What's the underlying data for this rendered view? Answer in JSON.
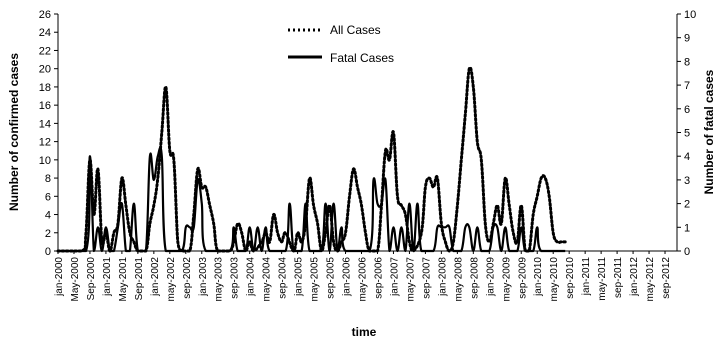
{
  "chart_data": {
    "type": "line",
    "xlabel": "time",
    "ylabel_left": "Number of confirmed cases",
    "ylabel_right": "Number of fatal cases",
    "ylim_left": [
      0,
      26
    ],
    "ylim_right": [
      0,
      10
    ],
    "yticks_left": [
      "0",
      "2",
      "4",
      "6",
      "8",
      "10",
      "12",
      "14",
      "16",
      "18",
      "20",
      "22",
      "24",
      "26"
    ],
    "yticks_right": [
      "0",
      "1",
      "2",
      "3",
      "4",
      "5",
      "6",
      "7",
      "8",
      "9",
      "10"
    ],
    "x_tick_labels": [
      "jan-2000",
      "May-2000",
      "Sep-2000",
      "jan-2001",
      "May-2001",
      "Sep-2001",
      "jan-2002",
      "may-2002",
      "sep-2002",
      "jan-2003",
      "may-2003",
      "sep-2003",
      "jan-2004",
      "may-2004",
      "sep-2004",
      "jan-2005",
      "may-2005",
      "sep-2005",
      "jan-2006",
      "may-2006",
      "sep-2006",
      "jan-2007",
      "may-2007",
      "sep-2007",
      "jan-2008",
      "may-2008",
      "sep-2008",
      "jan-2009",
      "may-2009",
      "sep-2009",
      "jan-2010",
      "may-2010",
      "sep-2010",
      "jan-2011",
      "may-2011",
      "sep-2011",
      "jan-2012",
      "may-2012",
      "sep-2012"
    ],
    "legend_position": "top-center",
    "grid": false,
    "series": [
      {
        "name": "All Cases",
        "axis": "left",
        "style": "dotted",
        "color": "#000000",
        "points": [
          [
            0,
            0
          ],
          [
            6,
            0
          ],
          [
            7,
            2
          ],
          [
            8,
            10
          ],
          [
            9,
            4
          ],
          [
            10,
            9
          ],
          [
            11,
            1
          ],
          [
            12,
            2
          ],
          [
            13,
            0
          ],
          [
            14,
            2
          ],
          [
            15,
            3
          ],
          [
            16,
            8
          ],
          [
            17,
            5
          ],
          [
            18,
            2
          ],
          [
            19,
            1
          ],
          [
            20,
            0
          ],
          [
            22,
            0
          ],
          [
            23,
            3
          ],
          [
            24,
            5
          ],
          [
            25,
            8
          ],
          [
            26,
            13
          ],
          [
            27,
            18
          ],
          [
            28,
            11
          ],
          [
            29,
            10
          ],
          [
            30,
            1
          ],
          [
            31,
            0
          ],
          [
            33,
            0
          ],
          [
            34,
            4
          ],
          [
            35,
            9
          ],
          [
            36,
            7
          ],
          [
            37,
            7
          ],
          [
            38,
            5
          ],
          [
            39,
            3
          ],
          [
            40,
            0
          ],
          [
            43,
            0
          ],
          [
            44,
            1
          ],
          [
            45,
            3
          ],
          [
            46,
            2
          ],
          [
            47,
            0
          ],
          [
            48,
            1
          ],
          [
            49,
            0
          ],
          [
            51,
            1
          ],
          [
            52,
            2
          ],
          [
            53,
            1
          ],
          [
            54,
            4
          ],
          [
            55,
            2
          ],
          [
            56,
            1
          ],
          [
            57,
            2
          ],
          [
            59,
            0
          ],
          [
            60,
            2
          ],
          [
            61,
            1
          ],
          [
            62,
            3
          ],
          [
            63,
            8
          ],
          [
            64,
            5
          ],
          [
            65,
            3
          ],
          [
            66,
            0
          ],
          [
            67,
            2
          ],
          [
            68,
            5
          ],
          [
            69,
            1
          ],
          [
            70,
            0
          ],
          [
            71,
            1
          ],
          [
            72,
            2
          ],
          [
            73,
            6
          ],
          [
            74,
            9
          ],
          [
            75,
            7
          ],
          [
            76,
            5
          ],
          [
            77,
            2
          ],
          [
            78,
            0
          ],
          [
            80,
            0
          ],
          [
            81,
            5
          ],
          [
            82,
            11
          ],
          [
            83,
            10
          ],
          [
            84,
            13
          ],
          [
            85,
            6
          ],
          [
            86,
            5
          ],
          [
            87,
            4
          ],
          [
            88,
            1
          ],
          [
            89,
            0
          ],
          [
            91,
            2
          ],
          [
            92,
            7
          ],
          [
            93,
            8
          ],
          [
            94,
            7
          ],
          [
            95,
            8
          ],
          [
            96,
            3
          ],
          [
            97,
            1
          ],
          [
            98,
            0
          ],
          [
            99,
            1
          ],
          [
            100,
            5
          ],
          [
            101,
            10
          ],
          [
            102,
            15
          ],
          [
            103,
            20
          ],
          [
            104,
            18
          ],
          [
            105,
            12
          ],
          [
            106,
            10
          ],
          [
            107,
            3
          ],
          [
            108,
            1
          ],
          [
            109,
            3
          ],
          [
            110,
            5
          ],
          [
            111,
            3
          ],
          [
            112,
            8
          ],
          [
            113,
            5
          ],
          [
            114,
            2
          ],
          [
            115,
            1
          ],
          [
            116,
            5
          ],
          [
            117,
            0
          ],
          [
            118,
            0
          ],
          [
            119,
            4
          ],
          [
            120,
            6
          ],
          [
            121,
            8
          ],
          [
            122,
            8
          ],
          [
            123,
            6
          ],
          [
            124,
            2
          ],
          [
            125,
            1
          ],
          [
            126,
            1
          ],
          [
            127,
            1
          ]
        ]
      },
      {
        "name": "Fatal Cases",
        "axis": "right",
        "style": "solid",
        "color": "#000000",
        "points": [
          [
            0,
            0
          ],
          [
            7,
            0
          ],
          [
            8,
            4
          ],
          [
            9,
            0
          ],
          [
            10,
            1
          ],
          [
            11,
            0
          ],
          [
            12,
            1
          ],
          [
            13,
            0
          ],
          [
            14,
            0
          ],
          [
            15,
            1
          ],
          [
            16,
            2
          ],
          [
            17,
            0
          ],
          [
            18,
            0
          ],
          [
            19,
            2
          ],
          [
            20,
            0
          ],
          [
            22,
            0
          ],
          [
            23,
            4
          ],
          [
            24,
            3
          ],
          [
            25,
            4
          ],
          [
            26,
            4
          ],
          [
            27,
            0
          ],
          [
            31,
            0
          ],
          [
            32,
            1
          ],
          [
            33,
            1
          ],
          [
            34,
            1
          ],
          [
            35,
            3
          ],
          [
            36,
            2
          ],
          [
            37,
            0
          ],
          [
            43,
            0
          ],
          [
            44,
            1
          ],
          [
            45,
            0
          ],
          [
            47,
            0
          ],
          [
            48,
            1
          ],
          [
            49,
            0
          ],
          [
            50,
            1
          ],
          [
            51,
            0
          ],
          [
            52,
            1
          ],
          [
            53,
            0
          ],
          [
            57,
            0
          ],
          [
            58,
            2
          ],
          [
            59,
            0
          ],
          [
            61,
            0
          ],
          [
            62,
            2
          ],
          [
            63,
            0
          ],
          [
            66,
            0
          ],
          [
            67,
            2
          ],
          [
            68,
            0
          ],
          [
            69,
            2
          ],
          [
            70,
            0
          ],
          [
            71,
            1
          ],
          [
            72,
            0
          ],
          [
            78,
            0
          ],
          [
            79,
            3
          ],
          [
            80,
            2
          ],
          [
            81,
            2
          ],
          [
            82,
            3
          ],
          [
            83,
            0
          ],
          [
            84,
            1
          ],
          [
            85,
            0
          ],
          [
            86,
            1
          ],
          [
            87,
            0
          ],
          [
            88,
            2
          ],
          [
            89,
            0
          ],
          [
            90,
            2
          ],
          [
            91,
            0
          ],
          [
            94,
            0
          ],
          [
            95,
            1
          ],
          [
            96,
            1
          ],
          [
            97,
            1
          ],
          [
            98,
            1
          ],
          [
            99,
            0
          ],
          [
            101,
            0
          ],
          [
            102,
            1
          ],
          [
            103,
            1
          ],
          [
            104,
            0
          ],
          [
            105,
            1
          ],
          [
            106,
            0
          ],
          [
            108,
            0
          ],
          [
            109,
            1
          ],
          [
            110,
            1
          ],
          [
            111,
            0
          ],
          [
            112,
            1
          ],
          [
            113,
            0
          ],
          [
            115,
            0
          ],
          [
            116,
            1
          ],
          [
            117,
            0
          ],
          [
            119,
            0
          ],
          [
            120,
            1
          ],
          [
            121,
            0
          ],
          [
            127,
            0
          ]
        ]
      }
    ]
  }
}
